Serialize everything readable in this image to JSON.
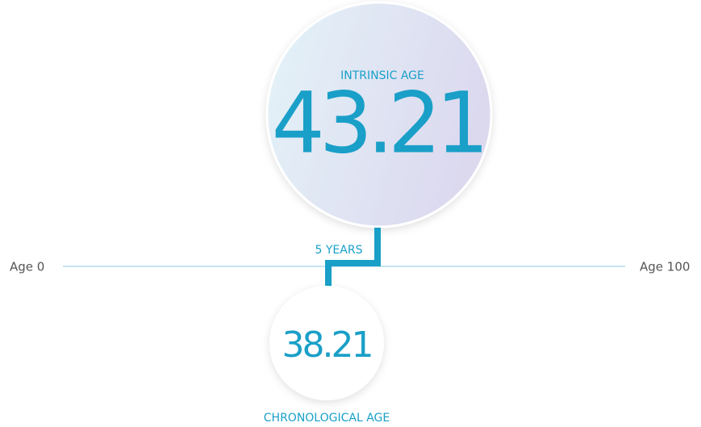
{
  "intrinsic": {
    "label": "INTRINSIC AGE",
    "value": 43.21
  },
  "difference": "5 YEARS",
  "scale": {
    "start": "Age 0",
    "end": "Age 100"
  },
  "chronological": {
    "value": 38.21,
    "label": "CHRONOLOGICAL AGE"
  }
}
